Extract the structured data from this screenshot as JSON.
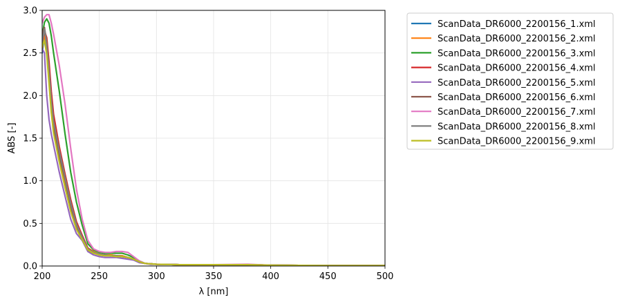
{
  "chart_data": {
    "type": "line",
    "xlabel": "λ [nm]",
    "ylabel": "ABS [-]",
    "xlim": [
      200,
      500
    ],
    "ylim": [
      0,
      3.0
    ],
    "xticks": [
      200,
      250,
      300,
      350,
      400,
      450,
      500
    ],
    "yticks": [
      0.0,
      0.5,
      1.0,
      1.5,
      2.0,
      2.5,
      3.0
    ],
    "xtick_labels": [
      "200",
      "250",
      "300",
      "350",
      "400",
      "450",
      "500"
    ],
    "ytick_labels": [
      "0.0",
      "0.5",
      "1.0",
      "1.5",
      "2.0",
      "2.5",
      "3.0"
    ],
    "grid": true,
    "legend": "outside-top-right",
    "x": [
      200,
      202,
      204,
      206,
      208,
      210,
      215,
      220,
      225,
      230,
      235,
      240,
      245,
      250,
      255,
      260,
      265,
      270,
      275,
      280,
      285,
      290,
      295,
      300,
      320,
      350,
      380,
      400,
      450,
      500
    ],
    "series": [
      {
        "name": "ScanData_DR6000_2200156_1.xml",
        "color": "#1f77b4",
        "values": [
          2.5,
          2.7,
          2.55,
          2.2,
          1.85,
          1.6,
          1.25,
          0.95,
          0.68,
          0.45,
          0.33,
          0.2,
          0.16,
          0.14,
          0.13,
          0.13,
          0.12,
          0.12,
          0.1,
          0.08,
          0.05,
          0.03,
          0.025,
          0.02,
          0.015,
          0.015,
          0.015,
          0.01,
          0.005,
          0.005
        ]
      },
      {
        "name": "ScanData_DR6000_2200156_2.xml",
        "color": "#ff7f0e",
        "values": [
          2.55,
          2.72,
          2.58,
          2.25,
          1.9,
          1.65,
          1.3,
          1.0,
          0.72,
          0.48,
          0.35,
          0.21,
          0.17,
          0.14,
          0.13,
          0.13,
          0.12,
          0.12,
          0.1,
          0.08,
          0.05,
          0.03,
          0.025,
          0.02,
          0.015,
          0.015,
          0.015,
          0.01,
          0.005,
          0.005
        ]
      },
      {
        "name": "ScanData_DR6000_2200156_3.xml",
        "color": "#2ca02c",
        "values": [
          2.7,
          2.86,
          2.9,
          2.85,
          2.7,
          2.5,
          2.05,
          1.55,
          1.1,
          0.75,
          0.48,
          0.26,
          0.19,
          0.16,
          0.15,
          0.15,
          0.15,
          0.15,
          0.13,
          0.1,
          0.06,
          0.03,
          0.025,
          0.02,
          0.015,
          0.015,
          0.015,
          0.01,
          0.005,
          0.005
        ]
      },
      {
        "name": "ScanData_DR6000_2200156_4.xml",
        "color": "#d62728",
        "values": [
          2.6,
          2.76,
          2.68,
          2.4,
          2.05,
          1.78,
          1.4,
          1.08,
          0.78,
          0.52,
          0.36,
          0.21,
          0.16,
          0.14,
          0.13,
          0.12,
          0.12,
          0.11,
          0.1,
          0.08,
          0.05,
          0.03,
          0.025,
          0.02,
          0.015,
          0.015,
          0.015,
          0.01,
          0.005,
          0.005
        ]
      },
      {
        "name": "ScanData_DR6000_2200156_5.xml",
        "color": "#9467bd",
        "values": [
          2.55,
          2.5,
          2.0,
          1.72,
          1.55,
          1.42,
          1.1,
          0.82,
          0.55,
          0.38,
          0.3,
          0.17,
          0.13,
          0.11,
          0.1,
          0.1,
          0.1,
          0.09,
          0.08,
          0.07,
          0.04,
          0.03,
          0.02,
          0.02,
          0.015,
          0.015,
          0.015,
          0.01,
          0.005,
          0.005
        ]
      },
      {
        "name": "ScanData_DR6000_2200156_6.xml",
        "color": "#8c564b",
        "values": [
          2.72,
          2.8,
          2.62,
          2.25,
          1.85,
          1.62,
          1.3,
          1.02,
          0.7,
          0.46,
          0.33,
          0.19,
          0.15,
          0.13,
          0.12,
          0.12,
          0.11,
          0.11,
          0.1,
          0.08,
          0.05,
          0.03,
          0.025,
          0.02,
          0.015,
          0.015,
          0.015,
          0.01,
          0.005,
          0.005
        ]
      },
      {
        "name": "ScanData_DR6000_2200156_7.xml",
        "color": "#e377c2",
        "values": [
          2.85,
          2.92,
          2.95,
          2.95,
          2.85,
          2.72,
          2.35,
          1.9,
          1.38,
          0.9,
          0.55,
          0.3,
          0.2,
          0.17,
          0.16,
          0.16,
          0.17,
          0.17,
          0.16,
          0.11,
          0.06,
          0.03,
          0.025,
          0.02,
          0.015,
          0.015,
          0.02,
          0.01,
          0.005,
          0.005
        ]
      },
      {
        "name": "ScanData_DR6000_2200156_8.xml",
        "color": "#7f7f7f",
        "values": [
          2.62,
          2.78,
          2.6,
          2.3,
          1.95,
          1.7,
          1.35,
          1.04,
          0.74,
          0.49,
          0.34,
          0.2,
          0.16,
          0.14,
          0.13,
          0.12,
          0.12,
          0.11,
          0.1,
          0.08,
          0.05,
          0.03,
          0.025,
          0.02,
          0.015,
          0.015,
          0.015,
          0.01,
          0.005,
          0.005
        ]
      },
      {
        "name": "ScanData_DR6000_2200156_9.xml",
        "color": "#bcbd22",
        "values": [
          2.58,
          2.65,
          2.48,
          2.15,
          1.8,
          1.56,
          1.22,
          0.92,
          0.64,
          0.43,
          0.31,
          0.19,
          0.15,
          0.13,
          0.12,
          0.12,
          0.11,
          0.11,
          0.1,
          0.08,
          0.05,
          0.03,
          0.025,
          0.02,
          0.015,
          0.015,
          0.015,
          0.01,
          0.005,
          0.005
        ]
      }
    ]
  }
}
